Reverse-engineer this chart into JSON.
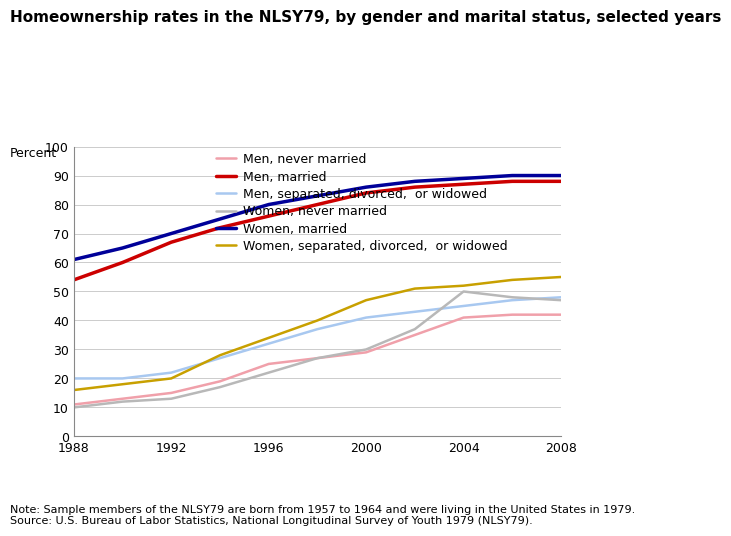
{
  "title": "Homeownership rates in the NLSY79, by gender and marital status, selected years",
  "ylabel": "Percent",
  "note": "Note: Sample members of the NLSY79 are born from 1957 to 1964 and were living in the United States in 1979.\nSource: U.S. Bureau of Labor Statistics, National Longitudinal Survey of Youth 1979 (NLSY79).",
  "years": [
    1988,
    1990,
    1992,
    1994,
    1996,
    1998,
    2000,
    2002,
    2004,
    2006,
    2008
  ],
  "series": [
    {
      "label": "Men, never married",
      "color": "#f0a0aa",
      "linewidth": 1.8,
      "values": [
        11,
        13,
        15,
        19,
        25,
        27,
        29,
        35,
        41,
        42,
        42
      ]
    },
    {
      "label": "Men, married",
      "color": "#cc0000",
      "linewidth": 2.5,
      "values": [
        54,
        60,
        67,
        72,
        76,
        80,
        84,
        86,
        87,
        88,
        88
      ]
    },
    {
      "label": "Men, separated, divorced,  or widowed",
      "color": "#a8c8f0",
      "linewidth": 1.8,
      "values": [
        20,
        20,
        22,
        27,
        32,
        37,
        41,
        43,
        45,
        47,
        48
      ]
    },
    {
      "label": "Women, never married",
      "color": "#b8b8b8",
      "linewidth": 1.8,
      "values": [
        10,
        12,
        13,
        17,
        22,
        27,
        30,
        37,
        50,
        48,
        47
      ]
    },
    {
      "label": "Women, married",
      "color": "#000099",
      "linewidth": 2.5,
      "values": [
        61,
        65,
        70,
        75,
        80,
        83,
        86,
        88,
        89,
        90,
        90
      ]
    },
    {
      "label": "Women, separated, divorced,  or widowed",
      "color": "#c8a000",
      "linewidth": 1.8,
      "values": [
        16,
        18,
        20,
        28,
        34,
        40,
        47,
        51,
        52,
        54,
        55
      ]
    }
  ],
  "xlim": [
    1988,
    2008
  ],
  "ylim": [
    0,
    100
  ],
  "xticks": [
    1988,
    1992,
    1996,
    2000,
    2004,
    2008
  ],
  "yticks": [
    0,
    10,
    20,
    30,
    40,
    50,
    60,
    70,
    80,
    90,
    100
  ],
  "background_color": "#ffffff",
  "title_fontsize": 11,
  "legend_fontsize": 9,
  "axis_label_fontsize": 9,
  "tick_fontsize": 9,
  "note_fontsize": 8
}
